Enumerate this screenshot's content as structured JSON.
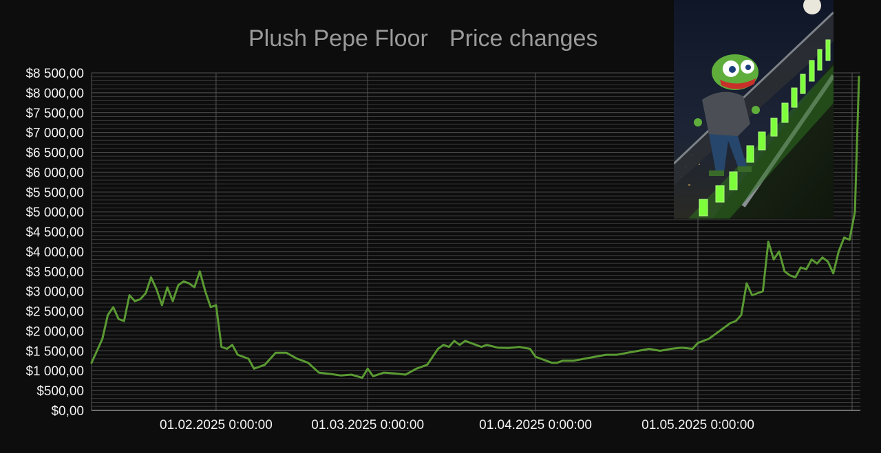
{
  "chart_data": {
    "type": "line",
    "title": "Plush Pepe Floor",
    "subtitle": "Price changes",
    "ylim": [
      0,
      8500
    ],
    "y_ticks": [
      {
        "value": 0,
        "label": "$0,00"
      },
      {
        "value": 500,
        "label": "$500,00"
      },
      {
        "value": 1000,
        "label": "$1 000,00"
      },
      {
        "value": 1500,
        "label": "$1 500,00"
      },
      {
        "value": 2000,
        "label": "$2 000,00"
      },
      {
        "value": 2500,
        "label": "$2 500,00"
      },
      {
        "value": 3000,
        "label": "$3 000,00"
      },
      {
        "value": 3500,
        "label": "$3 500,00"
      },
      {
        "value": 4000,
        "label": "$4 000,00"
      },
      {
        "value": 4500,
        "label": "$4 500,00"
      },
      {
        "value": 5000,
        "label": "$5 000,00"
      },
      {
        "value": 5500,
        "label": "$5 500,00"
      },
      {
        "value": 6000,
        "label": "$6 000,00"
      },
      {
        "value": 6500,
        "label": "$6 500,00"
      },
      {
        "value": 7000,
        "label": "$7 000,00"
      },
      {
        "value": 7500,
        "label": "$7 500,00"
      },
      {
        "value": 8000,
        "label": "$8 000,00"
      },
      {
        "value": 8500,
        "label": "$8 500,00"
      }
    ],
    "xlim": [
      "2025-01-09",
      "2025-05-31"
    ],
    "x_ticks": [
      {
        "value": "2025-02-01",
        "label": "01.02.2025 0:00:00"
      },
      {
        "value": "2025-03-01",
        "label": "01.03.2025 0:00:00"
      },
      {
        "value": "2025-04-01",
        "label": "01.04.2025 0:00:00"
      },
      {
        "value": "2025-05-01",
        "label": "01.05.2025 0:00:00"
      }
    ],
    "grid": true,
    "legend": "none",
    "line_color": "#5a9a32",
    "series": [
      {
        "x": [
          "2025-01-09",
          "2025-01-10",
          "2025-01-11",
          "2025-01-12",
          "2025-01-13",
          "2025-01-14",
          "2025-01-15",
          "2025-01-16",
          "2025-01-17",
          "2025-01-18",
          "2025-01-19",
          "2025-01-20",
          "2025-01-21",
          "2025-01-22",
          "2025-01-23",
          "2025-01-24",
          "2025-01-25",
          "2025-01-26",
          "2025-01-27",
          "2025-01-28",
          "2025-01-29",
          "2025-01-30",
          "2025-01-31",
          "2025-02-01",
          "2025-02-02",
          "2025-02-03",
          "2025-02-04",
          "2025-02-05",
          "2025-02-06",
          "2025-02-07",
          "2025-02-08",
          "2025-02-09",
          "2025-02-10",
          "2025-02-12",
          "2025-02-14",
          "2025-02-16",
          "2025-02-18",
          "2025-02-20",
          "2025-02-22",
          "2025-02-24",
          "2025-02-26",
          "2025-02-27",
          "2025-02-28",
          "2025-03-01",
          "2025-03-02",
          "2025-03-04",
          "2025-03-06",
          "2025-03-08",
          "2025-03-10",
          "2025-03-12",
          "2025-03-14",
          "2025-03-15",
          "2025-03-16",
          "2025-03-17",
          "2025-03-18",
          "2025-03-19",
          "2025-03-20",
          "2025-03-21",
          "2025-03-22",
          "2025-03-23",
          "2025-03-25",
          "2025-03-27",
          "2025-03-29",
          "2025-03-31",
          "2025-04-01",
          "2025-04-02",
          "2025-04-03",
          "2025-04-04",
          "2025-04-05",
          "2025-04-06",
          "2025-04-08",
          "2025-04-10",
          "2025-04-12",
          "2025-04-14",
          "2025-04-16",
          "2025-04-18",
          "2025-04-20",
          "2025-04-22",
          "2025-04-24",
          "2025-04-26",
          "2025-04-28",
          "2025-04-30",
          "2025-05-01",
          "2025-05-02",
          "2025-05-03",
          "2025-05-05",
          "2025-05-07",
          "2025-05-08",
          "2025-05-09",
          "2025-05-10",
          "2025-05-11",
          "2025-05-12",
          "2025-05-13",
          "2025-05-14",
          "2025-05-15",
          "2025-05-16",
          "2025-05-17",
          "2025-05-18",
          "2025-05-19",
          "2025-05-20",
          "2025-05-21",
          "2025-05-22",
          "2025-05-23",
          "2025-05-24",
          "2025-05-25",
          "2025-05-26",
          "2025-05-27",
          "2025-05-28",
          "2025-05-29",
          "2025-05-30",
          "2025-05-31"
        ],
        "values": [
          1200,
          1500,
          1800,
          2400,
          2600,
          2300,
          2250,
          2900,
          2750,
          2800,
          2950,
          3350,
          3050,
          2650,
          3100,
          2750,
          3150,
          3250,
          3200,
          3100,
          3500,
          3000,
          2600,
          2650,
          1600,
          1550,
          1650,
          1400,
          1350,
          1300,
          1050,
          1100,
          1150,
          1450,
          1450,
          1300,
          1200,
          950,
          920,
          880,
          900,
          860,
          820,
          1050,
          860,
          950,
          930,
          900,
          1050,
          1150,
          1550,
          1650,
          1600,
          1750,
          1650,
          1750,
          1700,
          1650,
          1600,
          1650,
          1580,
          1570,
          1600,
          1550,
          1350,
          1300,
          1250,
          1200,
          1200,
          1250,
          1250,
          1300,
          1350,
          1400,
          1400,
          1450,
          1500,
          1550,
          1500,
          1550,
          1580,
          1550,
          1700,
          1750,
          1800,
          2000,
          2200,
          2250,
          2400,
          3200,
          2900,
          2950,
          3000,
          4250,
          3800,
          4000,
          3500,
          3400,
          3350,
          3600,
          3550,
          3800,
          3700,
          3850,
          3750,
          3450,
          4000,
          4350,
          4300,
          5000,
          8400
        ]
      }
    ]
  },
  "decoration": {
    "image_icon": "pepe-escalator-image",
    "colors": {
      "background": "#0d0d0d",
      "line": "#5a9a32",
      "grid": "#3a3a3a",
      "text": "#f2f2f2",
      "title": "#9a9a9a"
    }
  }
}
